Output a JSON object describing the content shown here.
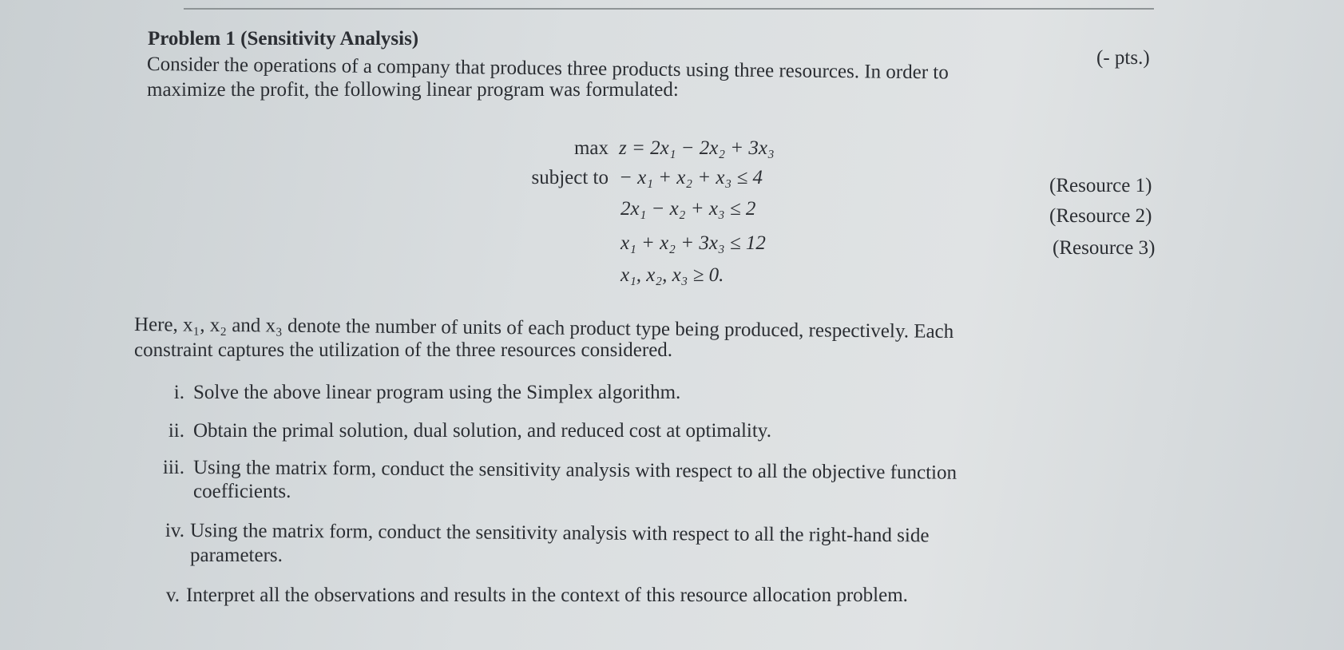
{
  "problem": {
    "title": "Problem 1  (Sensitivity Analysis)",
    "points": "(- pts.)",
    "intro_line1": "Consider the operations of a company that produces three products using three resources. In order to",
    "intro_line2": "maximize the profit, the following linear program was formulated:"
  },
  "lp": {
    "objective_label": "max",
    "objective": "z = 2x₁ − 2x₂ + 3x₃",
    "subject_to_label": "subject to",
    "constraints": [
      {
        "expr": "− x₁ + x₂ + x₃ ≤ 4",
        "label": "(Resource 1)"
      },
      {
        "expr": "2x₁ − x₂ + x₃ ≤ 2",
        "label": "(Resource 2)"
      },
      {
        "expr": "x₁ + x₂ + 3x₃ ≤ 12",
        "label": "(Resource 3)"
      }
    ],
    "nonnegativity": "x₁, x₂, x₃ ≥ 0."
  },
  "explanation": {
    "line1": "Here, x₁, x₂ and x₃ denote the number of units of each product type being produced, respectively. Each",
    "line2": "constraint captures the utilization of the three resources considered."
  },
  "tasks": [
    {
      "num": "i.",
      "lines": [
        "Solve the above linear program using the Simplex algorithm."
      ]
    },
    {
      "num": "ii.",
      "lines": [
        "Obtain the primal solution, dual solution, and reduced cost at optimality."
      ]
    },
    {
      "num": "iii.",
      "lines": [
        "Using the matrix form, conduct the sensitivity analysis with respect to all the objective function",
        "coefficients."
      ]
    },
    {
      "num": "iv.",
      "lines": [
        "Using the matrix form, conduct the sensitivity analysis with respect to all the right-hand side",
        "parameters."
      ]
    },
    {
      "num": "v.",
      "lines": [
        "Interpret all the observations and results in the context of this resource allocation problem."
      ]
    }
  ]
}
